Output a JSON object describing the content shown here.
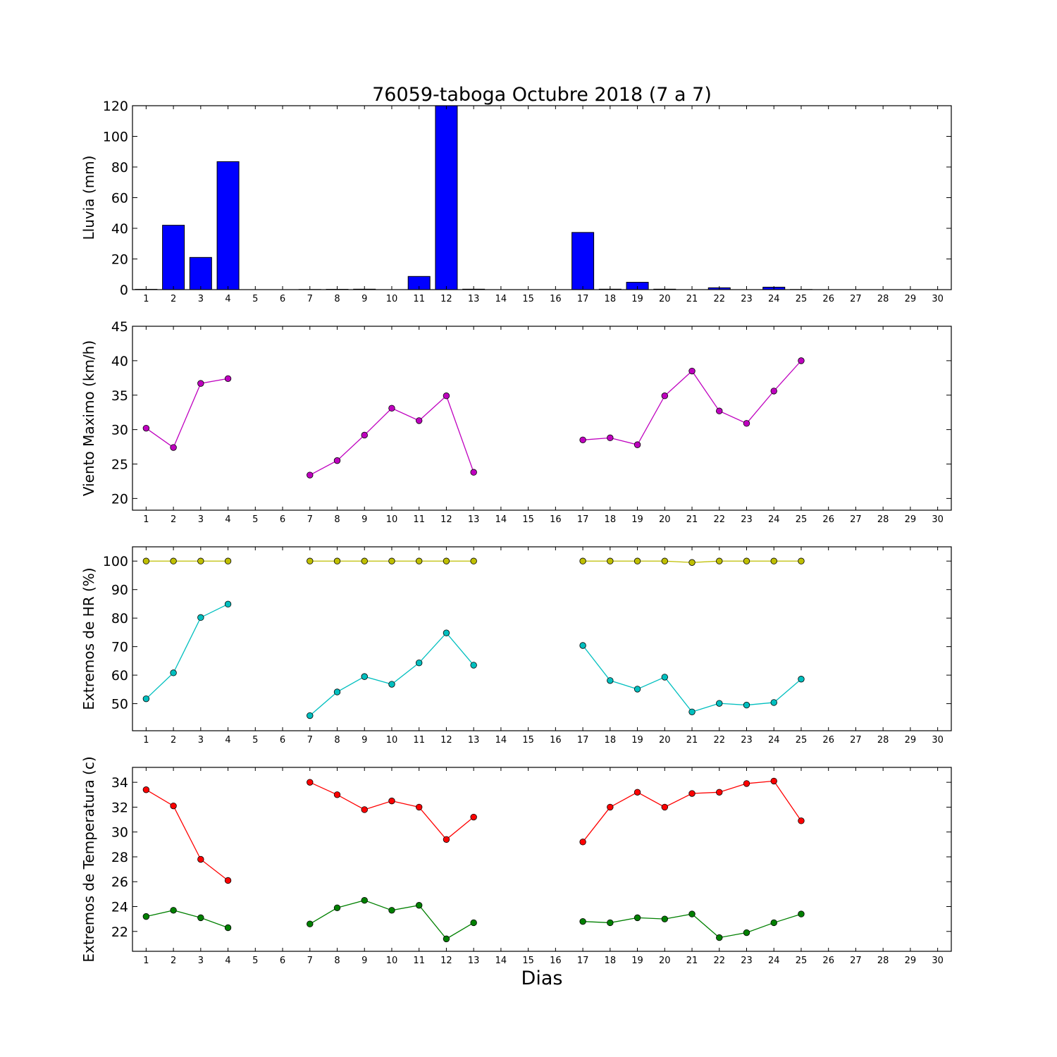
{
  "figure": {
    "title": "76059-taboga Octubre 2018  (7 a 7)",
    "xlabel": "Dias"
  },
  "chart_data": [
    {
      "type": "bar",
      "ylabel": "Lluvia (mm)",
      "ylim": [
        0,
        120
      ],
      "yticks": [
        0,
        20,
        40,
        60,
        80,
        100,
        120
      ],
      "xlim": [
        0.5,
        30.5
      ],
      "categories": [
        1,
        2,
        3,
        4,
        5,
        6,
        7,
        8,
        9,
        10,
        11,
        12,
        13,
        14,
        15,
        16,
        17,
        18,
        19,
        20,
        21,
        22,
        23,
        24,
        25,
        26,
        27,
        28,
        29,
        30
      ],
      "series": [
        {
          "color": "#0000ff",
          "values": [
            0.2,
            42,
            21,
            83.5,
            null,
            null,
            0.1,
            0.2,
            0.3,
            null,
            8.6,
            120,
            0.3,
            null,
            null,
            null,
            37.3,
            0.3,
            4.8,
            0.3,
            null,
            1.2,
            null,
            1.6,
            0.1,
            null,
            null,
            null,
            null,
            null
          ]
        }
      ],
      "grid": false
    },
    {
      "type": "line",
      "ylabel": "Viento Maximo (km/h)",
      "ylim": [
        18.3,
        45
      ],
      "yticks": [
        20,
        25,
        30,
        35,
        40,
        45
      ],
      "xlim": [
        0.5,
        30.5
      ],
      "x": [
        1,
        2,
        3,
        4,
        5,
        6,
        7,
        8,
        9,
        10,
        11,
        12,
        13,
        14,
        15,
        16,
        17,
        18,
        19,
        20,
        21,
        22,
        23,
        24,
        25,
        26,
        27,
        28,
        29,
        30
      ],
      "series": [
        {
          "color": "#bf00bf",
          "values": [
            30.2,
            27.4,
            36.7,
            37.4,
            null,
            null,
            23.4,
            25.5,
            29.2,
            33.1,
            31.3,
            34.9,
            23.8,
            null,
            null,
            null,
            28.5,
            28.8,
            27.8,
            34.9,
            38.5,
            32.7,
            30.9,
            35.6,
            40,
            null,
            null,
            null,
            null,
            null
          ]
        }
      ],
      "grid": false
    },
    {
      "type": "line",
      "ylabel": "Extremos de HR (%)",
      "ylim": [
        40.5,
        105
      ],
      "yticks": [
        50,
        60,
        70,
        80,
        90,
        100
      ],
      "xlim": [
        0.5,
        30.5
      ],
      "x": [
        1,
        2,
        3,
        4,
        5,
        6,
        7,
        8,
        9,
        10,
        11,
        12,
        13,
        14,
        15,
        16,
        17,
        18,
        19,
        20,
        21,
        22,
        23,
        24,
        25,
        26,
        27,
        28,
        29,
        30
      ],
      "series": [
        {
          "color": "#bfbf00",
          "values": [
            100,
            100,
            100,
            100,
            null,
            null,
            100,
            100,
            100,
            100,
            100,
            100,
            100,
            null,
            null,
            null,
            100,
            100,
            100,
            100,
            99.5,
            100,
            100,
            100,
            100,
            null,
            null,
            null,
            null,
            null
          ]
        },
        {
          "color": "#00bfbf",
          "values": [
            51.7,
            60.8,
            80.2,
            84.9,
            null,
            null,
            45.8,
            54.1,
            59.5,
            56.8,
            64.3,
            74.8,
            63.5,
            null,
            null,
            null,
            70.4,
            58.1,
            55.1,
            59.3,
            47.1,
            50.1,
            49.5,
            50.4,
            58.6,
            null,
            null,
            null,
            null,
            null
          ]
        }
      ],
      "grid": false
    },
    {
      "type": "line",
      "ylabel": "Extremos de Temperatura (c)",
      "ylim": [
        20.4,
        35.2
      ],
      "yticks": [
        22,
        24,
        26,
        28,
        30,
        32,
        34
      ],
      "xlim": [
        0.5,
        30.5
      ],
      "x": [
        1,
        2,
        3,
        4,
        5,
        6,
        7,
        8,
        9,
        10,
        11,
        12,
        13,
        14,
        15,
        16,
        17,
        18,
        19,
        20,
        21,
        22,
        23,
        24,
        25,
        26,
        27,
        28,
        29,
        30
      ],
      "series": [
        {
          "color": "#ff0000",
          "values": [
            33.4,
            32.1,
            27.8,
            26.1,
            null,
            null,
            34,
            33,
            31.8,
            32.5,
            32,
            29.4,
            31.2,
            null,
            null,
            null,
            29.2,
            32,
            33.2,
            32,
            33.1,
            33.2,
            33.9,
            34.1,
            30.9,
            null,
            null,
            null,
            null,
            null
          ]
        },
        {
          "color": "#008000",
          "values": [
            23.2,
            23.7,
            23.1,
            22.3,
            null,
            null,
            22.6,
            23.9,
            24.5,
            23.7,
            24.1,
            21.4,
            22.7,
            null,
            null,
            null,
            22.8,
            22.7,
            23.1,
            23,
            23.4,
            21.5,
            21.9,
            22.7,
            23.4,
            null,
            null,
            null,
            null,
            null
          ]
        }
      ],
      "grid": false
    }
  ]
}
